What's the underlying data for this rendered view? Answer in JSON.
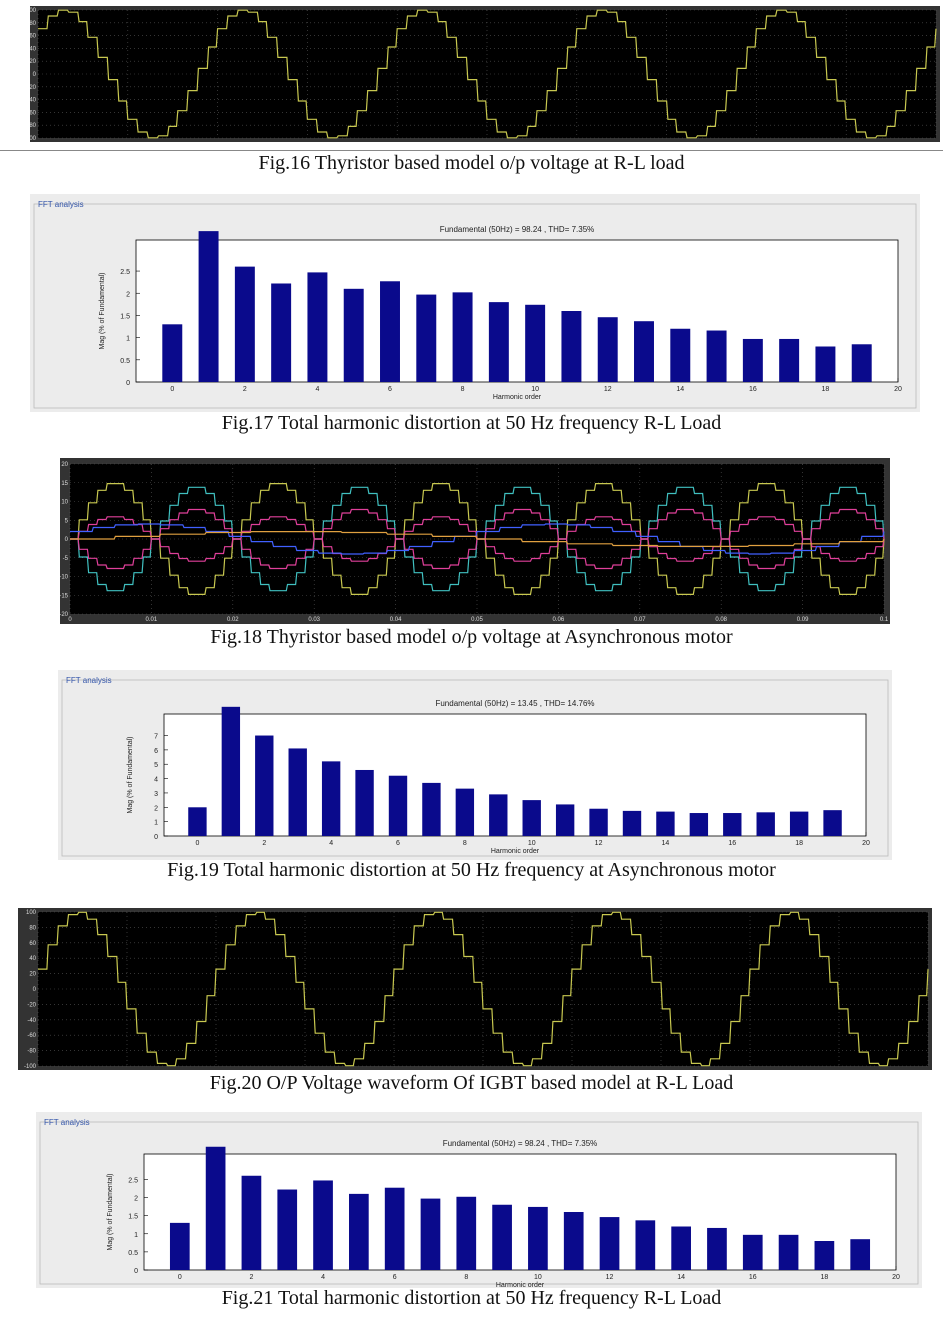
{
  "captions": {
    "fig16": "Fig.16 Thyristor based model o/p voltage at R-L load",
    "fig17": "Fig.17 Total harmonic distortion at 50 Hz frequency R-L Load",
    "fig18": "Fig.18 Thyristor based model o/p voltage at Asynchronous motor",
    "fig19": "Fig.19 Total harmonic distortion at 50 Hz frequency at Asynchronous motor",
    "fig20": "Fig.20 O/P Voltage  waveform Of IGBT based model at R-L Load",
    "fig21": "Fig.21 Total harmonic distortion at 50 Hz frequency R-L Load"
  },
  "colors": {
    "bar": "#0a0a8c",
    "scope_yellow": "#c8c850",
    "scope_cyan": "#40c0c0",
    "scope_magenta": "#e0409a",
    "scope_blue": "#4060ff",
    "scope_orange": "#e0a040"
  },
  "chart_data": [
    {
      "id": "fig16",
      "type": "line",
      "ylim": [
        -100,
        100
      ],
      "yticks": [
        "100",
        "80",
        "60",
        "40",
        "20",
        "0",
        "-20",
        "-40",
        "-60",
        "-80",
        "-100"
      ],
      "series": [
        {
          "amplitude": 100,
          "cycles": 5,
          "phase_deg": 45
        }
      ]
    },
    {
      "id": "fig17",
      "type": "bar",
      "group_label": "FFT analysis",
      "title": "Fundamental (50Hz) = 98.24 , THD= 7.35%",
      "xlabel": "Harmonic order",
      "ylabel": "Mag (% of Fundamental)",
      "xlim": [
        -1,
        20
      ],
      "ylim": [
        0,
        3.2
      ],
      "xticks": [
        "0",
        "2",
        "4",
        "6",
        "8",
        "10",
        "12",
        "14",
        "16",
        "18",
        "20"
      ],
      "yticks": [
        "0",
        "0.5",
        "1",
        "1.5",
        "2",
        "2.5"
      ],
      "categories": [
        0,
        1,
        2,
        3,
        4,
        5,
        6,
        7,
        8,
        9,
        10,
        11,
        12,
        13,
        14,
        15,
        16,
        17,
        18,
        19
      ],
      "values": [
        1.3,
        3.4,
        2.6,
        2.22,
        2.47,
        2.1,
        2.27,
        1.97,
        2.02,
        1.8,
        1.74,
        1.6,
        1.46,
        1.37,
        1.2,
        1.16,
        0.97,
        0.97,
        0.8,
        0.85
      ]
    },
    {
      "id": "fig18",
      "type": "line",
      "ylim": [
        -20,
        20
      ],
      "xlim": [
        0,
        0.1
      ],
      "yticks": [
        "20",
        "15",
        "10",
        "5",
        "0",
        "-5",
        "-10",
        "-15",
        "-20"
      ],
      "xticks": [
        "0",
        "0.01",
        "0.02",
        "0.03",
        "0.04",
        "0.05",
        "0.06",
        "0.07",
        "0.08",
        "0.09",
        "0.1"
      ],
      "series": [
        {
          "color_key": "scope_yellow",
          "amplitude": 15,
          "cycles": 5,
          "phase_deg": 0
        },
        {
          "color_key": "scope_cyan",
          "amplitude": -14,
          "cycles": 5,
          "phase_deg": 0
        },
        {
          "color_key": "scope_magenta",
          "amplitude": 8,
          "cycles": 5,
          "phase_deg": 180
        },
        {
          "color_key": "scope_magenta",
          "amplitude": 6,
          "cycles": 5,
          "phase_deg": 0
        },
        {
          "color_key": "scope_blue",
          "amplitude": 4,
          "cycles": 2,
          "phase_deg": 30
        },
        {
          "color_key": "scope_orange",
          "amplitude": 2,
          "cycles": 1,
          "phase_deg": 0
        }
      ]
    },
    {
      "id": "fig19",
      "type": "bar",
      "group_label": "FFT analysis",
      "title": "Fundamental (50Hz) = 13.45 , THD= 14.76%",
      "xlabel": "Harmonic order",
      "ylabel": "Mag (% of Fundamental)",
      "xlim": [
        -1,
        20
      ],
      "ylim": [
        0,
        8.5
      ],
      "xticks": [
        "0",
        "2",
        "4",
        "6",
        "8",
        "10",
        "12",
        "14",
        "16",
        "18",
        "20"
      ],
      "yticks": [
        "0",
        "1",
        "2",
        "3",
        "4",
        "5",
        "6",
        "7"
      ],
      "categories": [
        0,
        1,
        2,
        3,
        4,
        5,
        6,
        7,
        8,
        9,
        10,
        11,
        12,
        13,
        14,
        15,
        16,
        17,
        18,
        19
      ],
      "values": [
        2.0,
        9.0,
        7.0,
        6.1,
        5.2,
        4.6,
        4.2,
        3.7,
        3.3,
        2.9,
        2.5,
        2.2,
        1.9,
        1.75,
        1.7,
        1.6,
        1.6,
        1.65,
        1.7,
        1.8
      ]
    },
    {
      "id": "fig20",
      "type": "line",
      "ylim": [
        -100,
        100
      ],
      "yticks": [
        "100",
        "80",
        "60",
        "40",
        "20",
        "0",
        "-20",
        "-40",
        "-60",
        "-80",
        "-100"
      ],
      "series": [
        {
          "amplitude": 100,
          "cycles": 5,
          "phase_deg": 15
        }
      ]
    },
    {
      "id": "fig21",
      "type": "bar",
      "group_label": "FFT analysis",
      "title": "Fundamental (50Hz) = 98.24 , THD= 7.35%",
      "xlabel": "Harmonic order",
      "ylabel": "Mag (% of Fundamental)",
      "xlim": [
        -1,
        20
      ],
      "ylim": [
        0,
        3.2
      ],
      "xticks": [
        "0",
        "2",
        "4",
        "6",
        "8",
        "10",
        "12",
        "14",
        "16",
        "18",
        "20"
      ],
      "yticks": [
        "0",
        "0.5",
        "1",
        "1.5",
        "2",
        "2.5"
      ],
      "categories": [
        0,
        1,
        2,
        3,
        4,
        5,
        6,
        7,
        8,
        9,
        10,
        11,
        12,
        13,
        14,
        15,
        16,
        17,
        18,
        19
      ],
      "values": [
        1.3,
        3.4,
        2.6,
        2.22,
        2.47,
        2.1,
        2.27,
        1.97,
        2.02,
        1.8,
        1.74,
        1.6,
        1.46,
        1.37,
        1.2,
        1.16,
        0.97,
        0.97,
        0.8,
        0.85
      ]
    }
  ]
}
